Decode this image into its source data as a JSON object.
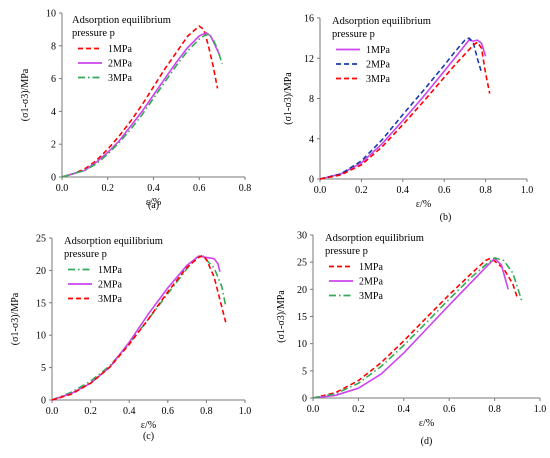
{
  "chart_data": [
    {
      "id": "a",
      "caption": "(a)",
      "type": "line",
      "xlabel": "ε/%",
      "ylabel": "(σ1-σ3)/MPa",
      "xlim": [
        0,
        0.8
      ],
      "ylim": [
        0,
        10
      ],
      "xticks": [
        0,
        0.2,
        0.4,
        0.6,
        0.8
      ],
      "yticks": [
        0,
        2,
        4,
        6,
        8,
        10
      ],
      "xtick_labels": [
        "0.0",
        "0.2",
        "0.4",
        "0.6",
        "0.8"
      ],
      "ytick_labels": [
        "0",
        "2",
        "4",
        "6",
        "8",
        "10"
      ],
      "legend_title_lines": [
        "Adsorption equilibrium",
        "pressure p"
      ],
      "legend_position": "top-left",
      "grid": false,
      "series": [
        {
          "name": "1MPa",
          "color": "#ff0000",
          "dash": "dashed",
          "x": [
            0,
            0.05,
            0.1,
            0.15,
            0.2,
            0.25,
            0.3,
            0.35,
            0.4,
            0.45,
            0.5,
            0.55,
            0.6,
            0.62,
            0.64,
            0.66,
            0.68
          ],
          "y": [
            0,
            0.2,
            0.5,
            1.0,
            1.7,
            2.5,
            3.4,
            4.4,
            5.5,
            6.6,
            7.6,
            8.6,
            9.2,
            9.0,
            8.0,
            6.8,
            5.4
          ]
        },
        {
          "name": "2MPa",
          "color": "#cc44ee",
          "dash": "solid",
          "x": [
            0,
            0.05,
            0.1,
            0.15,
            0.2,
            0.25,
            0.3,
            0.35,
            0.4,
            0.45,
            0.5,
            0.55,
            0.6,
            0.63,
            0.65,
            0.67,
            0.69
          ],
          "y": [
            0,
            0.2,
            0.4,
            0.9,
            1.5,
            2.2,
            3.1,
            4.0,
            5.0,
            6.0,
            7.0,
            7.9,
            8.6,
            8.8,
            8.6,
            8.0,
            7.4
          ]
        },
        {
          "name": "3MPa",
          "color": "#33aa55",
          "dash": "dashdot",
          "x": [
            0,
            0.05,
            0.1,
            0.15,
            0.2,
            0.25,
            0.3,
            0.35,
            0.4,
            0.45,
            0.5,
            0.55,
            0.6,
            0.62,
            0.64,
            0.66,
            0.68,
            0.7
          ],
          "y": [
            0,
            0.2,
            0.4,
            0.8,
            1.4,
            2.1,
            2.9,
            3.8,
            4.8,
            5.8,
            6.8,
            7.7,
            8.4,
            8.6,
            8.7,
            8.4,
            7.8,
            6.9
          ]
        }
      ]
    },
    {
      "id": "b",
      "caption": "(b)",
      "type": "line",
      "xlabel": "ε/%",
      "ylabel": "(σ1-σ3)/MPa",
      "xlim": [
        0,
        1.0
      ],
      "ylim": [
        0,
        16
      ],
      "xticks": [
        0,
        0.2,
        0.4,
        0.6,
        0.8,
        1.0
      ],
      "yticks": [
        0,
        4,
        8,
        12,
        16
      ],
      "xtick_labels": [
        "0.0",
        "0.2",
        "0.4",
        "0.6",
        "0.8",
        "1.0"
      ],
      "ytick_labels": [
        "0",
        "4",
        "8",
        "12",
        "16"
      ],
      "legend_title_lines": [
        "Adsorption equilibrium",
        "pressure p"
      ],
      "legend_position": "top-left",
      "grid": false,
      "series": [
        {
          "name": "1MPa",
          "color": "#cc44ee",
          "dash": "solid",
          "x": [
            0,
            0.1,
            0.2,
            0.3,
            0.4,
            0.5,
            0.6,
            0.65,
            0.7,
            0.72,
            0.74,
            0.76,
            0.78,
            0.8
          ],
          "y": [
            0,
            0.5,
            1.6,
            3.5,
            5.8,
            8.2,
            10.7,
            12.0,
            13.3,
            13.8,
            13.7,
            13.8,
            13.5,
            12.2
          ]
        },
        {
          "name": "2MPa",
          "color": "#1a3aaa",
          "dash": "dashed",
          "x": [
            0,
            0.1,
            0.2,
            0.3,
            0.4,
            0.5,
            0.6,
            0.65,
            0.7,
            0.72,
            0.74,
            0.76,
            0.78
          ],
          "y": [
            0,
            0.5,
            1.8,
            3.9,
            6.4,
            8.8,
            11.3,
            12.6,
            13.8,
            14.0,
            13.6,
            12.0,
            10.6
          ]
        },
        {
          "name": "3MPa",
          "color": "#ff0000",
          "dash": "dashed",
          "x": [
            0,
            0.1,
            0.2,
            0.3,
            0.4,
            0.5,
            0.6,
            0.65,
            0.7,
            0.74,
            0.76,
            0.78,
            0.8,
            0.82
          ],
          "y": [
            0,
            0.4,
            1.4,
            3.2,
            5.4,
            7.7,
            10.1,
            11.3,
            12.4,
            13.3,
            13.6,
            13.0,
            10.5,
            8.5
          ]
        }
      ]
    },
    {
      "id": "c",
      "caption": "(c)",
      "type": "line",
      "xlabel": "ε/%",
      "ylabel": "(σ1-σ3)/MPa",
      "xlim": [
        0,
        1.0
      ],
      "ylim": [
        0,
        25
      ],
      "xticks": [
        0,
        0.2,
        0.4,
        0.6,
        0.8,
        1.0
      ],
      "yticks": [
        0,
        5,
        10,
        15,
        20,
        25
      ],
      "xtick_labels": [
        "0.0",
        "0.2",
        "0.4",
        "0.6",
        "0.8",
        "1.0"
      ],
      "ytick_labels": [
        "0",
        "5",
        "10",
        "15",
        "20",
        "25"
      ],
      "legend_title_lines": [
        "Adsorption equilibrium",
        "pressure p"
      ],
      "legend_position": "top-left",
      "grid": false,
      "series": [
        {
          "name": "1MPa",
          "color": "#33aa55",
          "dash": "dashdot",
          "x": [
            0,
            0.1,
            0.2,
            0.3,
            0.4,
            0.5,
            0.6,
            0.7,
            0.75,
            0.78,
            0.8,
            0.84,
            0.88,
            0.9
          ],
          "y": [
            0,
            1.2,
            2.9,
            5.3,
            8.7,
            12.5,
            16.4,
            20.3,
            22.0,
            22.3,
            21.6,
            20.4,
            17.5,
            14.5
          ]
        },
        {
          "name": "2MPa",
          "color": "#cc44ee",
          "dash": "solid",
          "x": [
            0,
            0.1,
            0.2,
            0.3,
            0.4,
            0.5,
            0.6,
            0.7,
            0.76,
            0.8,
            0.84,
            0.86,
            0.87
          ],
          "y": [
            0,
            1.0,
            2.6,
            5.1,
            8.9,
            13.3,
            17.3,
            20.8,
            22.2,
            22.0,
            21.8,
            21.0,
            19.8
          ]
        },
        {
          "name": "3MPa",
          "color": "#ff0000",
          "dash": "dashed",
          "x": [
            0,
            0.1,
            0.2,
            0.3,
            0.4,
            0.5,
            0.6,
            0.7,
            0.76,
            0.78,
            0.8,
            0.84,
            0.87,
            0.9
          ],
          "y": [
            0,
            0.9,
            2.6,
            5.1,
            8.6,
            12.5,
            16.7,
            20.5,
            22.0,
            22.3,
            21.7,
            19.0,
            15.5,
            12.0
          ]
        }
      ]
    },
    {
      "id": "d",
      "caption": "(d)",
      "type": "line",
      "xlabel": "ε/%",
      "ylabel": "(σ1-σ3)/MPa",
      "xlim": [
        0,
        1.0
      ],
      "ylim": [
        0,
        30
      ],
      "xticks": [
        0,
        0.2,
        0.4,
        0.6,
        0.8,
        1.0
      ],
      "yticks": [
        0,
        5,
        10,
        15,
        20,
        25,
        30
      ],
      "xtick_labels": [
        "0.0",
        "0.2",
        "0.4",
        "0.6",
        "0.8",
        "1.0"
      ],
      "ytick_labels": [
        "0",
        "5",
        "10",
        "15",
        "20",
        "25",
        "30"
      ],
      "legend_title_lines": [
        "Adsorption equilibrium",
        "pressure p"
      ],
      "legend_position": "top-left",
      "grid": false,
      "series": [
        {
          "name": "1MPa",
          "color": "#ff0000",
          "dash": "dashed",
          "x": [
            0,
            0.1,
            0.2,
            0.3,
            0.4,
            0.5,
            0.6,
            0.7,
            0.76,
            0.78,
            0.8,
            0.84,
            0.88,
            0.9
          ],
          "y": [
            0,
            1.0,
            3.2,
            6.5,
            10.5,
            14.8,
            19.0,
            23.0,
            25.3,
            25.7,
            25.2,
            23.8,
            21.0,
            18.5
          ]
        },
        {
          "name": "2MPa",
          "color": "#cc44ee",
          "dash": "solid",
          "x": [
            0,
            0.1,
            0.2,
            0.3,
            0.4,
            0.5,
            0.6,
            0.7,
            0.76,
            0.8,
            0.83,
            0.86
          ],
          "y": [
            0,
            0.5,
            1.8,
            4.4,
            8.3,
            12.7,
            17.1,
            21.4,
            24.0,
            25.7,
            24.5,
            20.0
          ]
        },
        {
          "name": "3MPa",
          "color": "#33aa55",
          "dash": "dashdot",
          "x": [
            0,
            0.1,
            0.2,
            0.3,
            0.4,
            0.5,
            0.6,
            0.7,
            0.76,
            0.8,
            0.84,
            0.88,
            0.9,
            0.92
          ],
          "y": [
            0,
            0.8,
            2.7,
            5.8,
            9.7,
            13.9,
            18.2,
            22.3,
            24.5,
            25.8,
            25.3,
            23.0,
            20.5,
            17.8
          ]
        }
      ]
    }
  ]
}
